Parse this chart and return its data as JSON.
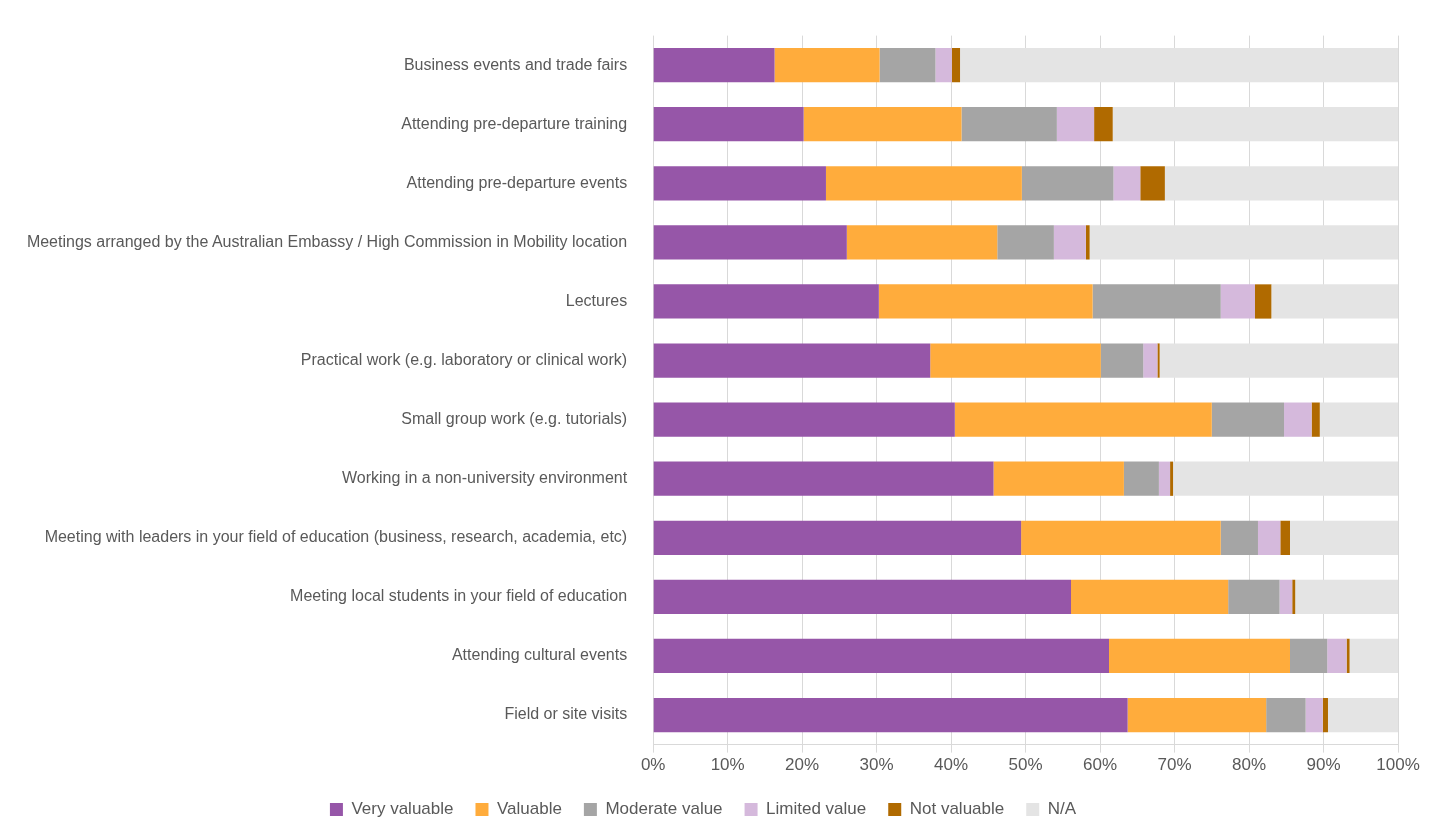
{
  "chart_data": {
    "type": "bar",
    "orientation": "horizontal",
    "stacked": true,
    "categories": [
      "Business events and trade fairs",
      "Attending pre-departure training",
      "Attending pre-departure events",
      "Meetings arranged by the Australian Embassy / High Commission in Mobility location",
      "Lectures",
      "Practical work (e.g. laboratory or clinical work)",
      "Small group work (e.g. tutorials)",
      "Working in a non-university environment",
      "Meeting with leaders in your field of education (business, research, academia, etc)",
      "Meeting local students in your field of education",
      "Attending cultural events",
      "Field or site visits"
    ],
    "series": [
      {
        "name": "Very valuable",
        "color": "#9656a8",
        "values": [
          16.3,
          20.2,
          23.2,
          26.0,
          30.3,
          37.2,
          40.5,
          45.7,
          49.4,
          56.1,
          61.2,
          63.7
        ]
      },
      {
        "name": "Valuable",
        "color": "#ffac3c",
        "values": [
          14.1,
          21.2,
          26.3,
          20.2,
          28.7,
          22.9,
          34.5,
          17.5,
          26.8,
          21.1,
          24.3,
          18.6
        ]
      },
      {
        "name": "Moderate value",
        "color": "#a5a5a5",
        "values": [
          7.5,
          12.8,
          12.3,
          7.6,
          17.2,
          5.7,
          9.7,
          4.7,
          5.0,
          6.9,
          5.0,
          5.3
        ]
      },
      {
        "name": "Limited value",
        "color": "#d5b9dc",
        "values": [
          2.2,
          5.0,
          3.6,
          4.3,
          4.6,
          1.9,
          3.7,
          1.5,
          3.0,
          1.7,
          2.6,
          2.3
        ]
      },
      {
        "name": "Not valuable",
        "color": "#b06a00",
        "values": [
          1.1,
          2.5,
          3.3,
          0.5,
          2.2,
          0.3,
          1.1,
          0.4,
          1.3,
          0.4,
          0.4,
          0.7
        ]
      },
      {
        "name": "N/A",
        "color": "#e4e4e4",
        "values": [
          58.8,
          38.3,
          31.3,
          41.4,
          17.0,
          32.0,
          10.5,
          30.2,
          14.5,
          13.8,
          6.5,
          9.4
        ]
      }
    ],
    "xlim": [
      0,
      100
    ],
    "xticks": [
      {
        "value": 0,
        "label": "0%"
      },
      {
        "value": 10,
        "label": "10%"
      },
      {
        "value": 20,
        "label": "20%"
      },
      {
        "value": 30,
        "label": "30%"
      },
      {
        "value": 40,
        "label": "40%"
      },
      {
        "value": 50,
        "label": "50%"
      },
      {
        "value": 60,
        "label": "60%"
      },
      {
        "value": 70,
        "label": "70%"
      },
      {
        "value": 80,
        "label": "80%"
      },
      {
        "value": 90,
        "label": "90%"
      },
      {
        "value": 100,
        "label": "100%"
      }
    ],
    "grid": "x",
    "legend": "bottom"
  }
}
